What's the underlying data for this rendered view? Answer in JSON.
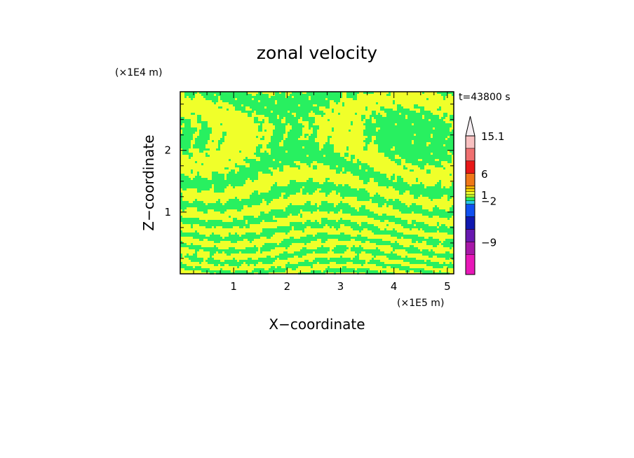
{
  "chart_data": {
    "type": "heatmap",
    "title": "zonal velocity",
    "xlabel": "X−coordinate",
    "ylabel": "Z−coordinate",
    "x_unit": "(×1E5 m)",
    "y_unit": "(×1E4 m)",
    "time_label": "t=43800 s",
    "xlim": [
      0,
      5.12
    ],
    "ylim": [
      0,
      2.95
    ],
    "x_ticks": [
      {
        "value": 1,
        "label": "1"
      },
      {
        "value": 2,
        "label": "2"
      },
      {
        "value": 3,
        "label": "3"
      },
      {
        "value": 4,
        "label": "4"
      },
      {
        "value": 5,
        "label": "5"
      }
    ],
    "y_ticks": [
      {
        "value": 1,
        "label": "1"
      },
      {
        "value": 2,
        "label": "2"
      }
    ],
    "field_colors": {
      "positive_band": "#f0ff2a",
      "negative_band": "#28f060"
    },
    "colorbar": {
      "labels": [
        {
          "value": 15.1,
          "label": "15.1"
        },
        {
          "value": 6,
          "label": "6"
        },
        {
          "value": 1,
          "label": "1"
        },
        {
          "value": -2,
          "label": "−2"
        },
        {
          "value": -9,
          "label": "−9"
        }
      ],
      "bins_top_to_bottom": [
        {
          "color": "#f8c0c0"
        },
        {
          "color": "#f07070"
        },
        {
          "color": "#e81818"
        },
        {
          "color": "#f07818"
        },
        {
          "color": "#f8b000"
        },
        {
          "color": "#f8d800"
        },
        {
          "color": "#f0ff2a"
        },
        {
          "color": "#b8f028"
        },
        {
          "color": "#28f060"
        },
        {
          "color": "#28c8e8"
        },
        {
          "color": "#1050f0"
        },
        {
          "color": "#1018b0"
        },
        {
          "color": "#6818b0"
        },
        {
          "color": "#a818a8"
        },
        {
          "color": "#e818b8"
        }
      ]
    }
  }
}
